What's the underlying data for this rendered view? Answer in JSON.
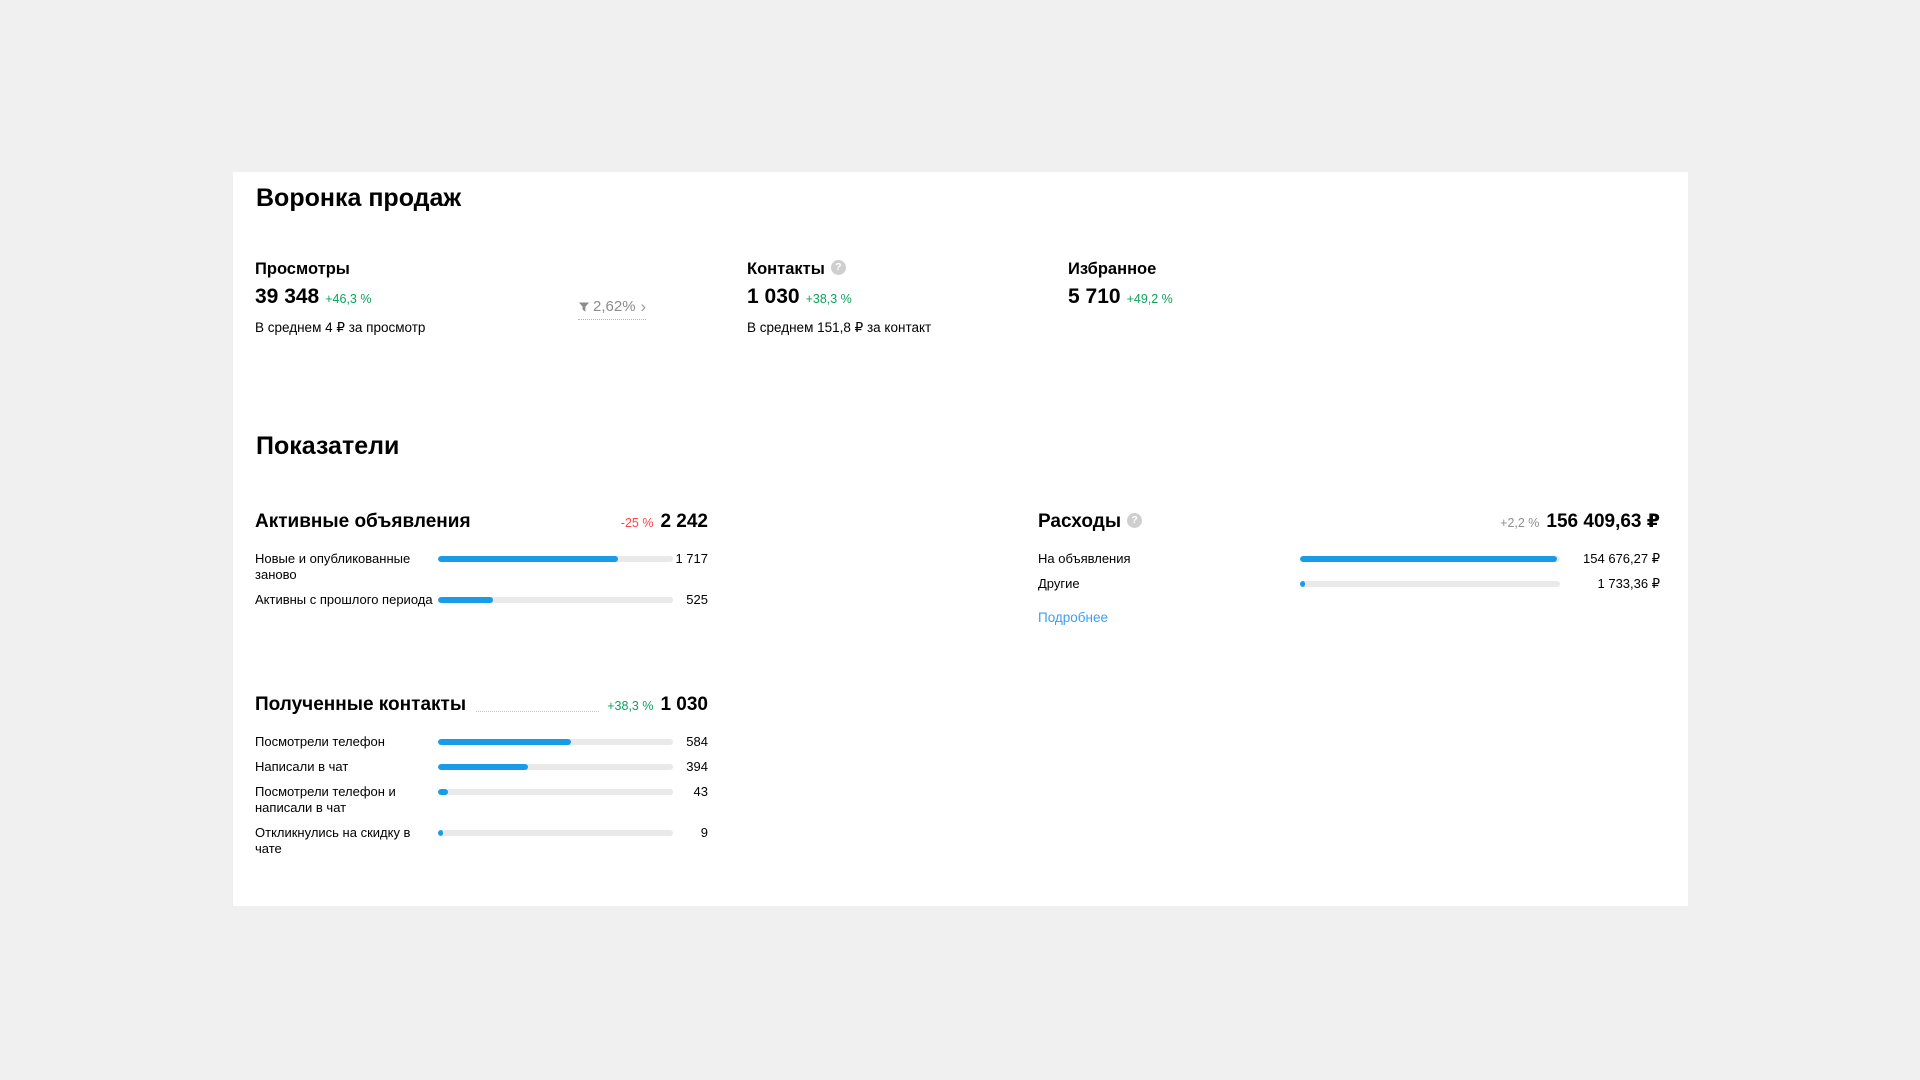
{
  "colors": {
    "page_bg": "#f0f0f0",
    "card_bg": "#ffffff",
    "bar_blue": "#189ce8",
    "bar_track": "#e9e9e9",
    "positive_green": "#0ca25c",
    "negative_red": "#ff4143",
    "neutral_gray": "#8f8f8f",
    "link_blue": "#3b9ef5"
  },
  "icons": {
    "help_glyph": "?",
    "chevron_right": "›"
  },
  "funnel": {
    "title": "Воронка продаж",
    "metrics": [
      {
        "label": "Просмотры",
        "value": "39 348",
        "delta": "+46,3 %",
        "delta_color": "green",
        "note": "В среднем 4 ₽ за просмотр"
      },
      {
        "label": "Контакты",
        "value": "1 030",
        "delta": "+38,3 %",
        "delta_color": "green",
        "note": "В среднем 151,8 ₽ за контакт"
      },
      {
        "label": "Избранное",
        "value": "5 710",
        "delta": "+49,2 %",
        "delta_color": "green",
        "note": ""
      }
    ],
    "conversion": {
      "value": "2,62%",
      "icon": "funnel-icon"
    }
  },
  "indicators": {
    "title": "Показатели",
    "blocks": [
      {
        "title": "Активные объявления",
        "delta": "-25 %",
        "delta_color": "red",
        "total": "2 242",
        "rows": [
          {
            "label": "Новые и опубликованные заново",
            "value": "1 717",
            "pct": 76.6
          },
          {
            "label": "Активны с прошлого периода",
            "value": "525",
            "pct": 23.4
          }
        ]
      },
      {
        "title": "Расходы",
        "delta": "+2,2 %",
        "delta_color": "gray",
        "total": "156 409,63 ₽",
        "rows": [
          {
            "label": "На объявления",
            "value": "154 676,27 ₽",
            "pct": 98.9
          },
          {
            "label": "Другие",
            "value": "1 733,36 ₽",
            "pct": 1.1
          }
        ],
        "link": "Подробнее"
      },
      {
        "title": "Полученные контакты",
        "delta": "+38,3 %",
        "delta_color": "green",
        "total": "1 030",
        "rows": [
          {
            "label": "Посмотрели телефон",
            "value": "584",
            "pct": 56.7
          },
          {
            "label": "Написали в чат",
            "value": "394",
            "pct": 38.3
          },
          {
            "label": "Посмотрели телефон и написали в чат",
            "value": "43",
            "pct": 4.2
          },
          {
            "label": "Откликнулись на скидку в чате",
            "value": "9",
            "pct": 0.9
          }
        ]
      }
    ]
  }
}
